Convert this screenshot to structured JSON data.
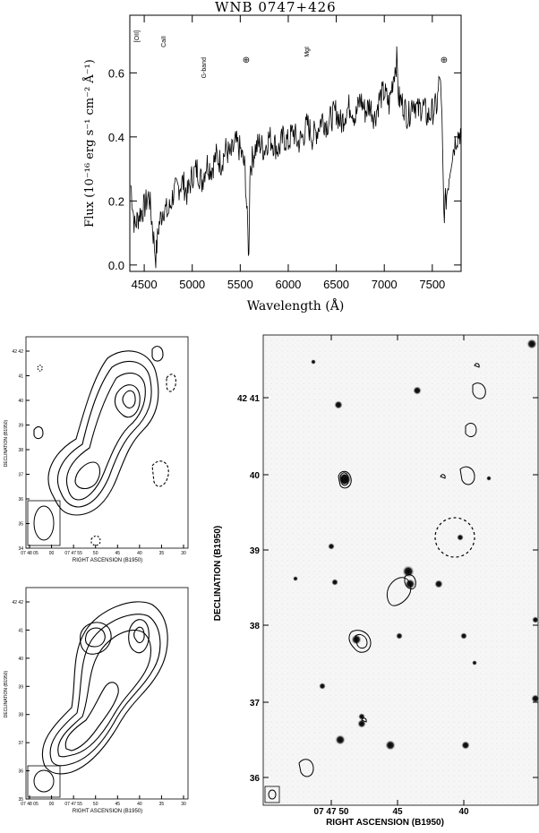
{
  "spectrum": {
    "title": "WNB 0747+426",
    "xlabel": "Wavelength (Å)",
    "ylabel": "Flux (10⁻¹⁶ erg s⁻¹ cm⁻² Å⁻¹)",
    "lines": [
      "[OII]",
      "CaII",
      "G-band",
      "MgI"
    ],
    "telluric_symbol": "⊕",
    "xticks": [
      "4500",
      "5000",
      "5500",
      "6000",
      "6500",
      "7000",
      "7500"
    ],
    "yticks": [
      "0.0",
      "0.2",
      "0.4",
      "0.6"
    ]
  },
  "chart_data": {
    "type": "line",
    "title": "WNB 0747+426",
    "xlabel": "Wavelength (Å)",
    "ylabel": "Flux (10⁻¹⁶ erg s⁻¹ cm⁻² Å⁻¹)",
    "xlim": [
      4350,
      7800
    ],
    "ylim": [
      -0.02,
      0.78
    ],
    "x": [
      4360,
      4400,
      4450,
      4500,
      4550,
      4600,
      4620,
      4650,
      4700,
      4750,
      4800,
      4850,
      4900,
      4950,
      5000,
      5050,
      5100,
      5150,
      5200,
      5250,
      5300,
      5350,
      5400,
      5450,
      5500,
      5550,
      5590,
      5600,
      5650,
      5700,
      5750,
      5800,
      5850,
      5900,
      5950,
      6000,
      6050,
      6100,
      6150,
      6200,
      6250,
      6300,
      6350,
      6400,
      6450,
      6500,
      6550,
      6600,
      6650,
      6700,
      6750,
      6800,
      6850,
      6900,
      6950,
      7000,
      7050,
      7100,
      7130,
      7150,
      7200,
      7250,
      7300,
      7350,
      7400,
      7450,
      7500,
      7550,
      7580,
      7600,
      7620,
      7650,
      7700,
      7750,
      7800
    ],
    "y": [
      0.25,
      0.12,
      0.16,
      0.18,
      0.22,
      0.08,
      0.02,
      0.12,
      0.18,
      0.16,
      0.22,
      0.24,
      0.26,
      0.22,
      0.28,
      0.3,
      0.26,
      0.32,
      0.3,
      0.34,
      0.32,
      0.36,
      0.34,
      0.38,
      0.36,
      0.3,
      0.02,
      0.3,
      0.36,
      0.38,
      0.36,
      0.4,
      0.38,
      0.36,
      0.4,
      0.38,
      0.42,
      0.38,
      0.4,
      0.44,
      0.4,
      0.42,
      0.46,
      0.44,
      0.46,
      0.48,
      0.44,
      0.48,
      0.5,
      0.46,
      0.52,
      0.48,
      0.5,
      0.46,
      0.52,
      0.54,
      0.5,
      0.6,
      0.64,
      0.52,
      0.5,
      0.46,
      0.52,
      0.48,
      0.5,
      0.46,
      0.48,
      0.5,
      0.6,
      0.44,
      0.16,
      0.22,
      0.34,
      0.4,
      0.42
    ]
  },
  "maps": {
    "ra_label": "RIGHT ASCENSION (B1950)",
    "dec_label": "DECLINATION (B1950)",
    "small_ra_ticks": [
      "07 48 05",
      "00",
      "07 47 55",
      "50",
      "45",
      "40",
      "35",
      "30"
    ],
    "small_dec_ticks": [
      "42 42",
      "41",
      "40",
      "39",
      "38",
      "37",
      "36",
      "35",
      "34"
    ],
    "small2_dec_ticks": [
      "42 42",
      "41",
      "40",
      "39",
      "38",
      "37",
      "36",
      "35"
    ],
    "big_dec_ticks": [
      "42 41",
      "40",
      "39",
      "38",
      "37",
      "36"
    ],
    "big_ra_ticks": [
      "07 47 50",
      "45",
      "40"
    ]
  }
}
